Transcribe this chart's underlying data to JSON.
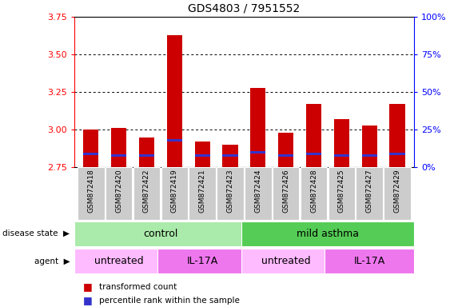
{
  "title": "GDS4803 / 7951552",
  "samples": [
    "GSM872418",
    "GSM872420",
    "GSM872422",
    "GSM872419",
    "GSM872421",
    "GSM872423",
    "GSM872424",
    "GSM872426",
    "GSM872428",
    "GSM872425",
    "GSM872427",
    "GSM872429"
  ],
  "red_values": [
    3.0,
    3.01,
    2.95,
    3.63,
    2.92,
    2.9,
    3.28,
    2.98,
    3.17,
    3.07,
    3.03,
    3.17
  ],
  "blue_values": [
    2.84,
    2.83,
    2.83,
    2.93,
    2.83,
    2.83,
    2.85,
    2.83,
    2.84,
    2.83,
    2.83,
    2.84
  ],
  "ymin": 2.75,
  "ymax": 3.75,
  "yticks_left": [
    2.75,
    3.0,
    3.25,
    3.5,
    3.75
  ],
  "yticks_right": [
    0,
    25,
    50,
    75,
    100
  ],
  "yticks_right_labels": [
    "0%",
    "25%",
    "50%",
    "75%",
    "100%"
  ],
  "bar_width": 0.55,
  "disease_state_groups": [
    {
      "label": "control",
      "start": 0,
      "end": 6,
      "color": "#AAEAAA"
    },
    {
      "label": "mild asthma",
      "start": 6,
      "end": 12,
      "color": "#55CC55"
    }
  ],
  "agent_groups": [
    {
      "label": "untreated",
      "start": 0,
      "end": 3,
      "color": "#FFBBFF"
    },
    {
      "label": "IL-17A",
      "start": 3,
      "end": 6,
      "color": "#EE77EE"
    },
    {
      "label": "untreated",
      "start": 6,
      "end": 9,
      "color": "#FFBBFF"
    },
    {
      "label": "IL-17A",
      "start": 9,
      "end": 12,
      "color": "#EE77EE"
    }
  ],
  "legend_items": [
    {
      "color": "#CC0000",
      "label": "transformed count"
    },
    {
      "color": "#3333CC",
      "label": "percentile rank within the sample"
    }
  ],
  "red_color": "#CC0000",
  "blue_color": "#3333CC",
  "sample_bg_color": "#CCCCCC",
  "grid_lines": [
    3.0,
    3.25,
    3.5
  ],
  "left_labels": [
    {
      "text": "disease state",
      "row": "ds"
    },
    {
      "text": "agent",
      "row": "ag"
    }
  ]
}
